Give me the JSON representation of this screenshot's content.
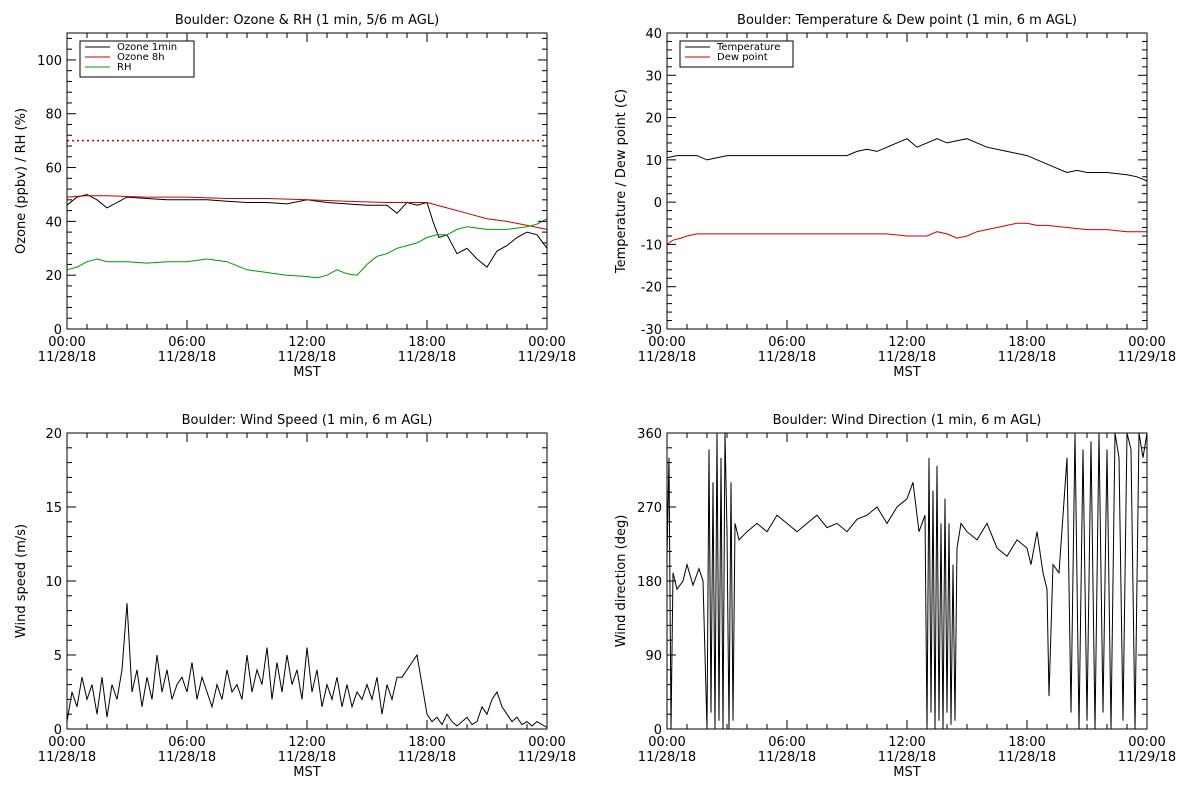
{
  "chart_data": [
    {
      "id": "ozone-rh",
      "type": "line",
      "title": "Boulder: Ozone & RH (1 min, 5/6 m AGL)",
      "xlabel": "MST",
      "ylabel": "Ozone (ppbv) / RH (%)",
      "xlim": [
        0,
        24
      ],
      "ylim": [
        0,
        110
      ],
      "yticks": [
        0,
        20,
        40,
        60,
        80,
        100
      ],
      "xticks": [
        0,
        6,
        12,
        18,
        24
      ],
      "xtick_labels": [
        [
          "00:00",
          "11/28/18"
        ],
        [
          "06:00",
          "11/28/18"
        ],
        [
          "12:00",
          "11/28/18"
        ],
        [
          "18:00",
          "11/28/18"
        ],
        [
          "00:00",
          "11/29/18"
        ]
      ],
      "legend_position": "top-left",
      "reference_line": {
        "y": 70,
        "color": "#cc0000",
        "style": "dotted"
      },
      "series": [
        {
          "name": "Ozone 1min",
          "color": "#000000",
          "in_legend": true,
          "x": [
            0,
            0.5,
            1,
            1.5,
            2,
            3,
            4,
            5,
            6,
            7,
            8,
            9,
            10,
            11,
            12,
            13,
            14,
            15,
            16,
            16.5,
            17,
            17.5,
            18,
            18.3,
            18.6,
            19,
            19.5,
            20,
            20.5,
            21,
            21.5,
            22,
            22.5,
            23,
            23.5,
            24
          ],
          "y": [
            46,
            49,
            50,
            48,
            45,
            49,
            48.5,
            48,
            48,
            48,
            47.5,
            47,
            47,
            46.5,
            48,
            47,
            46.5,
            46,
            46,
            43,
            47,
            46,
            47,
            40,
            34,
            35,
            28,
            30,
            26,
            23,
            29,
            31,
            34,
            36,
            35,
            30
          ]
        },
        {
          "name": "Ozone 8h",
          "color": "#cc0000",
          "in_legend": true,
          "x": [
            0,
            1,
            2,
            4,
            6,
            8,
            10,
            12,
            14,
            16,
            17,
            18,
            19,
            20,
            21,
            22,
            23,
            24
          ],
          "y": [
            49,
            49.5,
            49.5,
            49,
            49,
            48.5,
            48.5,
            48,
            47.5,
            47,
            47,
            47,
            45,
            43,
            41,
            40,
            38.5,
            37
          ]
        },
        {
          "name": "RH",
          "color": "#009900",
          "in_legend": true,
          "x": [
            0,
            0.5,
            1,
            1.5,
            2,
            3,
            4,
            5,
            6,
            7,
            8,
            9,
            10,
            11,
            12,
            12.5,
            13,
            13.5,
            14,
            14.5,
            15,
            15.5,
            16,
            16.5,
            17,
            17.5,
            18,
            18.5,
            19,
            19.5,
            20,
            21,
            22,
            23,
            23.5,
            24
          ],
          "y": [
            22,
            23,
            25,
            26,
            25,
            25,
            24.5,
            25,
            25,
            26,
            25,
            22,
            21,
            20,
            19.5,
            19,
            20,
            22,
            20.5,
            20,
            24,
            27,
            28,
            30,
            31,
            32,
            34,
            35,
            35,
            37,
            38,
            37,
            37,
            38,
            39,
            41
          ]
        }
      ]
    },
    {
      "id": "temperature-dewpoint",
      "type": "line",
      "title": "Boulder: Temperature & Dew point (1 min, 6 m AGL)",
      "xlabel": "MST",
      "ylabel": "Temperature / Dew point (C)",
      "xlim": [
        0,
        24
      ],
      "ylim": [
        -30,
        40
      ],
      "yticks": [
        -30,
        -20,
        -10,
        0,
        10,
        20,
        30,
        40
      ],
      "xticks": [
        0,
        6,
        12,
        18,
        24
      ],
      "xtick_labels": [
        [
          "00:00",
          "11/28/18"
        ],
        [
          "06:00",
          "11/28/18"
        ],
        [
          "12:00",
          "11/28/18"
        ],
        [
          "18:00",
          "11/28/18"
        ],
        [
          "00:00",
          "11/29/18"
        ]
      ],
      "legend_position": "top-left",
      "series": [
        {
          "name": "Temperature",
          "color": "#000000",
          "in_legend": true,
          "x": [
            0,
            0.5,
            1,
            1.5,
            2,
            2.5,
            3,
            4,
            5,
            6,
            7,
            8,
            9,
            9.5,
            10,
            10.5,
            11,
            11.5,
            12,
            12.5,
            13,
            13.5,
            14,
            14.5,
            15,
            15.5,
            16,
            17,
            18,
            19,
            19.5,
            20,
            20.5,
            21,
            22,
            23,
            23.5,
            24
          ],
          "y": [
            10.5,
            11,
            11,
            11,
            10,
            10.5,
            11,
            11,
            11,
            11,
            11,
            11,
            11,
            12,
            12.5,
            12,
            13,
            14,
            15,
            13,
            14,
            15,
            14,
            14.5,
            15,
            14,
            13,
            12,
            11,
            9,
            8,
            7,
            7.5,
            7,
            7,
            6.5,
            6,
            5
          ]
        },
        {
          "name": "Dew point",
          "color": "#cc0000",
          "in_legend": true,
          "x": [
            0,
            0.3,
            0.7,
            1,
            1.5,
            2,
            3,
            4,
            5,
            6,
            7,
            8,
            9,
            10,
            11,
            12,
            13,
            13.5,
            14,
            14.5,
            15,
            15.5,
            16,
            16.5,
            17,
            17.5,
            18,
            18.5,
            19,
            20,
            21,
            22,
            23,
            24
          ],
          "y": [
            -10,
            -9,
            -8.5,
            -8,
            -7.5,
            -7.5,
            -7.5,
            -7.5,
            -7.5,
            -7.5,
            -7.5,
            -7.5,
            -7.5,
            -7.5,
            -7.5,
            -8,
            -8,
            -7,
            -7.5,
            -8.5,
            -8,
            -7,
            -6.5,
            -6,
            -5.5,
            -5,
            -5,
            -5.5,
            -5.5,
            -6,
            -6.5,
            -6.5,
            -7,
            -7
          ]
        }
      ]
    },
    {
      "id": "wind-speed",
      "type": "line",
      "title": "Boulder: Wind Speed (1 min, 6 m AGL)",
      "xlabel": "MST",
      "ylabel": "Wind speed (m/s)",
      "xlim": [
        0,
        24
      ],
      "ylim": [
        0,
        20
      ],
      "yticks": [
        0,
        5,
        10,
        15,
        20
      ],
      "xticks": [
        0,
        6,
        12,
        18,
        24
      ],
      "xtick_labels": [
        [
          "00:00",
          "11/28/18"
        ],
        [
          "06:00",
          "11/28/18"
        ],
        [
          "12:00",
          "11/28/18"
        ],
        [
          "18:00",
          "11/28/18"
        ],
        [
          "00:00",
          "11/29/18"
        ]
      ],
      "series": [
        {
          "color": "#000000",
          "in_legend": false,
          "x": [
            0,
            0.25,
            0.5,
            0.75,
            1,
            1.25,
            1.5,
            1.75,
            2,
            2.25,
            2.5,
            2.75,
            3,
            3.25,
            3.5,
            3.75,
            4,
            4.25,
            4.5,
            4.75,
            5,
            5.25,
            5.5,
            5.75,
            6,
            6.25,
            6.5,
            6.75,
            7,
            7.25,
            7.5,
            7.75,
            8,
            8.25,
            8.5,
            8.75,
            9,
            9.25,
            9.5,
            9.75,
            10,
            10.25,
            10.5,
            10.75,
            11,
            11.25,
            11.5,
            11.75,
            12,
            12.25,
            12.5,
            12.75,
            13,
            13.25,
            13.5,
            13.75,
            14,
            14.25,
            14.5,
            14.75,
            15,
            15.25,
            15.5,
            15.75,
            16,
            16.25,
            16.5,
            16.75,
            17,
            17.25,
            17.5,
            17.75,
            18,
            18.25,
            18.5,
            18.75,
            19,
            19.25,
            19.5,
            19.75,
            20,
            20.25,
            20.5,
            20.75,
            21,
            21.25,
            21.5,
            21.75,
            22,
            22.25,
            22.5,
            22.75,
            23,
            23.25,
            23.5,
            23.75,
            24
          ],
          "y": [
            0.5,
            2.5,
            1.5,
            3.5,
            2,
            3,
            1,
            3.5,
            0.8,
            3,
            2,
            4,
            8.5,
            2.5,
            4,
            1.5,
            3.5,
            2,
            5,
            2.5,
            4,
            2,
            3,
            3.5,
            2.5,
            4.5,
            2,
            3.5,
            2.5,
            1.5,
            3,
            2,
            4,
            2.5,
            3,
            2,
            5,
            2.5,
            4,
            3,
            5.5,
            2,
            4.5,
            2.5,
            5,
            3,
            4,
            2,
            5.5,
            2.5,
            4,
            1.5,
            3,
            2,
            3.5,
            1.5,
            3,
            1.5,
            2.5,
            2,
            3,
            2,
            3.5,
            1,
            3,
            2,
            3.5,
            3.5,
            4,
            4.5,
            5,
            3,
            1,
            0.5,
            0.8,
            0.3,
            1,
            0.5,
            0.2,
            0.5,
            0.8,
            0.3,
            0.5,
            1.5,
            1,
            2,
            2.5,
            1.5,
            1,
            0.5,
            0.8,
            0.3,
            0.5,
            0.2,
            0.5,
            0.3,
            0.1
          ]
        }
      ]
    },
    {
      "id": "wind-direction",
      "type": "line",
      "title": "Boulder: Wind Direction (1 min, 6 m AGL)",
      "xlabel": "MST",
      "ylabel": "Wind direction (deg)",
      "xlim": [
        0,
        24
      ],
      "ylim": [
        0,
        360
      ],
      "yticks": [
        0,
        90,
        180,
        270,
        360
      ],
      "xticks": [
        0,
        6,
        12,
        18,
        24
      ],
      "xtick_labels": [
        [
          "00:00",
          "11/28/18"
        ],
        [
          "06:00",
          "11/28/18"
        ],
        [
          "12:00",
          "11/28/18"
        ],
        [
          "18:00",
          "11/28/18"
        ],
        [
          "00:00",
          "11/29/18"
        ]
      ],
      "series": [
        {
          "color": "#000000",
          "in_legend": false,
          "x": [
            0,
            0.1,
            0.2,
            0.3,
            0.5,
            0.8,
            1,
            1.3,
            1.6,
            1.8,
            2,
            2.1,
            2.2,
            2.3,
            2.4,
            2.5,
            2.6,
            2.7,
            2.8,
            2.9,
            3,
            3.1,
            3.2,
            3.3,
            3.4,
            3.6,
            4,
            4.5,
            5,
            5.5,
            6,
            6.5,
            7,
            7.5,
            8,
            8.5,
            9,
            9.5,
            10,
            10.5,
            11,
            11.5,
            12,
            12.3,
            12.6,
            12.9,
            13,
            13.1,
            13.2,
            13.3,
            13.4,
            13.5,
            13.6,
            13.7,
            13.8,
            13.9,
            14,
            14.1,
            14.2,
            14.3,
            14.4,
            14.5,
            14.7,
            15,
            15.5,
            16,
            16.5,
            17,
            17.5,
            18,
            18.2,
            18.5,
            18.8,
            19,
            19.1,
            19.3,
            19.6,
            20,
            20.2,
            20.4,
            20.6,
            20.8,
            21,
            21.2,
            21.4,
            21.6,
            21.8,
            22,
            22.2,
            22.4,
            22.6,
            22.8,
            23,
            23.2,
            23.4,
            23.6,
            23.8,
            24
          ],
          "y": [
            210,
            330,
            0,
            190,
            170,
            180,
            200,
            175,
            195,
            180,
            0,
            340,
            20,
            300,
            0,
            360,
            10,
            330,
            0,
            360,
            240,
            0,
            300,
            10,
            250,
            230,
            240,
            250,
            240,
            260,
            250,
            240,
            250,
            260,
            245,
            250,
            240,
            255,
            260,
            270,
            250,
            270,
            280,
            300,
            240,
            260,
            0,
            330,
            20,
            290,
            0,
            320,
            10,
            250,
            0,
            280,
            20,
            250,
            5,
            200,
            10,
            220,
            250,
            240,
            230,
            250,
            220,
            210,
            230,
            220,
            200,
            240,
            190,
            170,
            40,
            200,
            190,
            330,
            20,
            360,
            0,
            340,
            10,
            350,
            0,
            360,
            20,
            340,
            0,
            360,
            330,
            10,
            360,
            340,
            0,
            360,
            330,
            360
          ]
        }
      ]
    }
  ]
}
